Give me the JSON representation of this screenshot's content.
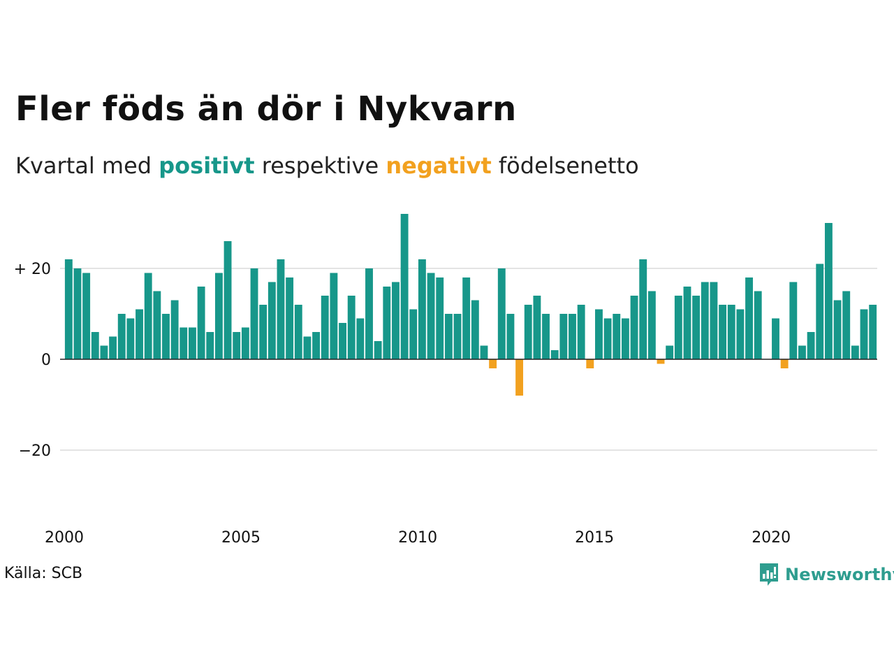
{
  "title": "Fler föds än dör i Nykvarn",
  "subtitle": {
    "prefix": "Kvartal med ",
    "positive": "positivt",
    "middle": " respektive ",
    "negative": "negativt",
    "suffix": " födelsenetto"
  },
  "source": "Källa: SCB",
  "brand": {
    "name": "Newsworthy",
    "logo_icon": "bar-chart-speech-bubble-icon"
  },
  "colors": {
    "positive": "#17978a",
    "negative": "#f2a11f",
    "grid": "#e4e4e4",
    "axis": "#222222"
  },
  "chart_data": {
    "type": "bar",
    "x_label_unit": "quarter",
    "start": {
      "year": 2000,
      "quarter": 1
    },
    "x_ticks": [
      "2000",
      "2005",
      "2010",
      "2015",
      "2020"
    ],
    "y_ticks": [
      {
        "value": 20,
        "label": "+ 20"
      },
      {
        "value": 0,
        "label": "0"
      },
      {
        "value": -20,
        "label": "−20"
      }
    ],
    "ylim": [
      -33,
      33
    ],
    "grid": true,
    "values": [
      22,
      20,
      19,
      6,
      3,
      5,
      10,
      9,
      11,
      19,
      15,
      10,
      13,
      7,
      7,
      16,
      6,
      19,
      26,
      6,
      7,
      20,
      12,
      17,
      22,
      18,
      12,
      5,
      6,
      14,
      19,
      8,
      14,
      9,
      20,
      4,
      16,
      17,
      32,
      11,
      22,
      19,
      18,
      10,
      10,
      18,
      13,
      3,
      -2,
      20,
      10,
      -8,
      12,
      14,
      10,
      2,
      10,
      10,
      12,
      -2,
      11,
      9,
      10,
      9,
      14,
      22,
      15,
      -1,
      3,
      14,
      16,
      14,
      17,
      17,
      12,
      12,
      11,
      18,
      15,
      0,
      9,
      -2,
      17,
      3,
      6,
      21,
      30,
      13,
      15,
      3,
      11,
      12
    ]
  }
}
